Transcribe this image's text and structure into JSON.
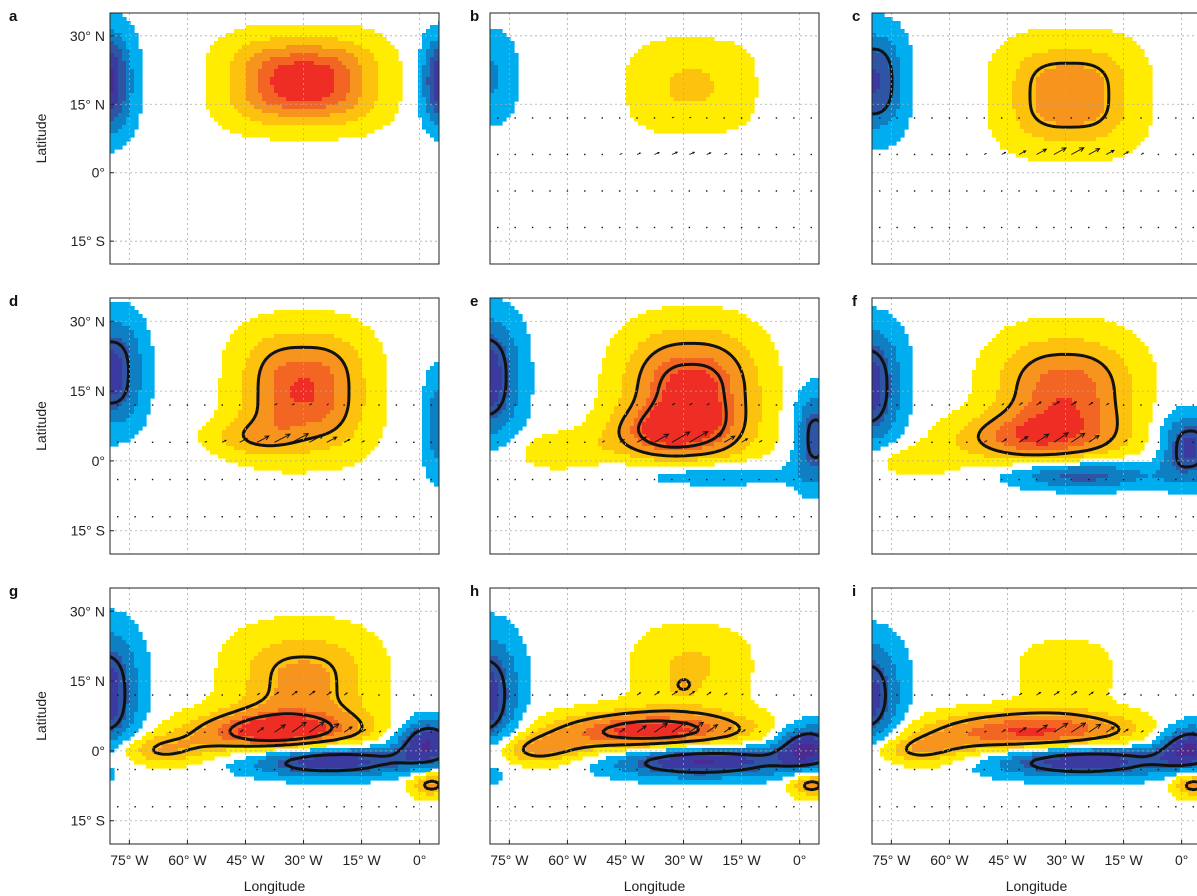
{
  "chart_data": {
    "type": "heatmap",
    "layout": "3x3 grid of map panels (a-i)",
    "panels": [
      "a",
      "b",
      "c",
      "d",
      "e",
      "f",
      "g",
      "h",
      "i"
    ],
    "xlabel": "Longitude",
    "ylabel": "Latitude",
    "x_ticks": [
      {
        "value": -75,
        "label": "75° W"
      },
      {
        "value": -60,
        "label": "60° W"
      },
      {
        "value": -45,
        "label": "45° W"
      },
      {
        "value": -30,
        "label": "30° W"
      },
      {
        "value": -15,
        "label": "15° W"
      },
      {
        "value": 0,
        "label": "0°"
      }
    ],
    "y_ticks": [
      {
        "value": 30,
        "label": "30° N"
      },
      {
        "value": 15,
        "label": "15° N"
      },
      {
        "value": 0,
        "label": "0°"
      },
      {
        "value": -15,
        "label": "15° S"
      }
    ],
    "xlim": [
      -80,
      5
    ],
    "ylim": [
      -20,
      35
    ],
    "grid": "dotted",
    "colors": {
      "positive": [
        "#ffec00",
        "#fcc20e",
        "#f7941d",
        "#f26522",
        "#ee2d24"
      ],
      "negative": [
        "#00aeef",
        "#0d7fc2",
        "#2e54a3",
        "#3a3aa0",
        "#4c2a8f"
      ],
      "contour": "#111111",
      "vector": "#111111"
    },
    "fields": [
      {
        "panel": "a",
        "blobs": [
          {
            "lon": -30,
            "lat": 20,
            "amp": 5.8,
            "rx": 17,
            "ry": 8.5,
            "p": 3
          },
          {
            "lon": -82,
            "lat": 20,
            "amp": -5.5,
            "rx": 7,
            "ry": 10.5,
            "p": 2.5
          },
          {
            "lon": 6,
            "lat": 20,
            "amp": -5,
            "rx": 5,
            "ry": 9,
            "p": 2.5
          }
        ],
        "solid_levels": [],
        "dashed_levels": [],
        "vectors": null
      },
      {
        "panel": "b",
        "blobs": [
          {
            "lon": -28,
            "lat": 19,
            "amp": 1.8,
            "rx": 16,
            "ry": 10,
            "p": 3
          },
          {
            "lon": -80,
            "lat": 21,
            "amp": -1.8,
            "rx": 7,
            "ry": 10,
            "p": 2.5
          }
        ],
        "solid_levels": [],
        "dashed_levels": [],
        "vectors": {
          "rows": [
            12,
            4,
            -4,
            -12
          ],
          "lon_min": -78,
          "lon_max": 3,
          "step": 4.5,
          "center_lon": -32,
          "center_lat": 6,
          "sx": 14,
          "sy": 5,
          "amp_u": 1.6,
          "amp_v": 0.6
        }
      },
      {
        "panel": "c",
        "blobs": [
          {
            "lon": -29,
            "lat": 17,
            "amp": 3.6,
            "rx": 16,
            "ry": 11,
            "p": 3
          },
          {
            "lon": -80,
            "lat": 20,
            "amp": -3.8,
            "rx": 8,
            "ry": 11,
            "p": 2.5
          }
        ],
        "solid_levels": [
          -2.5
        ],
        "dashed_levels": [
          2.4
        ],
        "vectors": {
          "rows": [
            12,
            4,
            -4,
            -12
          ],
          "lon_min": -78,
          "lon_max": 3,
          "step": 4.5,
          "center_lon": -30,
          "center_lat": 5,
          "sx": 15,
          "sy": 4,
          "amp_u": 3.5,
          "amp_v": 1.6
        }
      },
      {
        "panel": "d",
        "blobs": [
          {
            "lon": -30,
            "lat": 15,
            "amp": 4.8,
            "rx": 15,
            "ry": 12,
            "p": 2.8
          },
          {
            "lon": -44,
            "lat": 5,
            "amp": 1.5,
            "rx": 12,
            "ry": 4,
            "p": 2
          },
          {
            "lon": -80,
            "lat": 19,
            "amp": -4.3,
            "rx": 8,
            "ry": 11,
            "p": 2.5
          },
          {
            "lon": 5,
            "lat": 8,
            "amp": -2.5,
            "rx": 4,
            "ry": 11,
            "p": 2.5
          }
        ],
        "solid_levels": [
          -3.0
        ],
        "dashed_levels": [
          2.6
        ],
        "vectors": {
          "rows": [
            12,
            4,
            -4,
            -12
          ],
          "lon_min": -78,
          "lon_max": 3,
          "step": 4.5,
          "center_lon": -34,
          "center_lat": 6,
          "sx": 14,
          "sy": 4,
          "amp_u": 5.5,
          "amp_v": 2.4
        }
      },
      {
        "panel": "e",
        "blobs": [
          {
            "lon": -28,
            "lat": 14,
            "amp": 5.5,
            "rx": 16,
            "ry": 13,
            "p": 2.5
          },
          {
            "lon": -35,
            "lat": 6,
            "amp": 2.5,
            "rx": 15,
            "ry": 5,
            "p": 2
          },
          {
            "lon": -62,
            "lat": 2,
            "amp": 1.5,
            "rx": 12,
            "ry": 4,
            "p": 2
          },
          {
            "lon": -82,
            "lat": 18,
            "amp": -4.8,
            "rx": 9,
            "ry": 12,
            "p": 2.5
          },
          {
            "lon": -25,
            "lat": -3,
            "amp": -2.0,
            "rx": 22,
            "ry": 3,
            "p": 2
          },
          {
            "lon": 4,
            "lat": 5,
            "amp": -3.6,
            "rx": 5,
            "ry": 10,
            "p": 2.5
          }
        ],
        "solid_levels": [
          -3.0
        ],
        "dashed_levels": [
          2.6,
          4.2
        ],
        "vectors": {
          "rows": [
            12,
            4,
            -4,
            -12
          ],
          "lon_min": -78,
          "lon_max": 3,
          "step": 4.5,
          "center_lon": -30,
          "center_lat": 6,
          "sx": 14,
          "sy": 4,
          "amp_u": 6.2,
          "amp_v": 3.0
        }
      },
      {
        "panel": "f",
        "blobs": [
          {
            "lon": -30,
            "lat": 14,
            "amp": 4.5,
            "rx": 17,
            "ry": 12,
            "p": 2.5
          },
          {
            "lon": -40,
            "lat": 5,
            "amp": 3.0,
            "rx": 20,
            "ry": 5,
            "p": 2
          },
          {
            "lon": -70,
            "lat": 0,
            "amp": 1.5,
            "rx": 12,
            "ry": 3.5,
            "p": 2
          },
          {
            "lon": -82,
            "lat": 16,
            "amp": -4.6,
            "rx": 9,
            "ry": 12,
            "p": 2.5
          },
          {
            "lon": -26,
            "lat": -3,
            "amp": -3.6,
            "rx": 19,
            "ry": 3.2,
            "p": 2
          },
          {
            "lon": 2,
            "lat": 3,
            "amp": -4.0,
            "rx": 7,
            "ry": 7,
            "p": 2.5
          }
        ],
        "solid_levels": [
          -3.0
        ],
        "dashed_levels": [
          2.6
        ],
        "vectors": {
          "rows": [
            12,
            4,
            -4,
            -12
          ],
          "lon_min": -78,
          "lon_max": 3,
          "step": 4.5,
          "center_lon": -32,
          "center_lat": 7,
          "sx": 14,
          "sy": 4,
          "amp_u": 6.5,
          "amp_v": 3.6
        }
      },
      {
        "panel": "g",
        "blobs": [
          {
            "lon": -30,
            "lat": 15,
            "amp": 3.0,
            "rx": 18,
            "ry": 11,
            "p": 2.5
          },
          {
            "lon": -37,
            "lat": 4,
            "amp": 5.0,
            "rx": 22,
            "ry": 4.5,
            "p": 2
          },
          {
            "lon": -68,
            "lat": 0,
            "amp": 2.5,
            "rx": 14,
            "ry": 3.5,
            "p": 2
          },
          {
            "lon": -82,
            "lat": 12,
            "amp": -4.6,
            "rx": 9,
            "ry": 13,
            "p": 2.5
          },
          {
            "lon": -24,
            "lat": -2,
            "amp": -5.0,
            "rx": 22,
            "ry": 3.5,
            "p": 2
          },
          {
            "lon": 2,
            "lat": 2,
            "amp": -4.5,
            "rx": 8,
            "ry": 5,
            "p": 2
          },
          {
            "lon": 3,
            "lat": -7,
            "amp": 3.0,
            "rx": 6,
            "ry": 3,
            "p": 2
          }
        ],
        "solid_levels": [
          -3.0
        ],
        "dashed_levels": [
          2.4,
          4.2
        ],
        "vectors": {
          "rows": [
            12,
            4,
            -4,
            -12
          ],
          "lon_min": -78,
          "lon_max": 3,
          "step": 4.5,
          "center_lon": -30,
          "center_lat": 7,
          "sx": 13,
          "sy": 4,
          "amp_u": 6.8,
          "amp_v": 4.0
        }
      },
      {
        "panel": "h",
        "blobs": [
          {
            "lon": -28,
            "lat": 18,
            "amp": 1.8,
            "rx": 15,
            "ry": 9,
            "p": 2.5
          },
          {
            "lon": -30,
            "lat": 14,
            "amp": 1.2,
            "rx": 3,
            "ry": 2,
            "p": 2
          },
          {
            "lon": -38,
            "lat": 4,
            "amp": 5.3,
            "rx": 26,
            "ry": 4.5,
            "p": 2
          },
          {
            "lon": -70,
            "lat": 0,
            "amp": 2.8,
            "rx": 15,
            "ry": 3.5,
            "p": 2
          },
          {
            "lon": -82,
            "lat": 11,
            "amp": -4.6,
            "rx": 9,
            "ry": 13,
            "p": 2.5
          },
          {
            "lon": -26,
            "lat": -2,
            "amp": -5.3,
            "rx": 24,
            "ry": 3.6,
            "p": 2
          },
          {
            "lon": 2,
            "lat": 1,
            "amp": -4.5,
            "rx": 8,
            "ry": 5,
            "p": 2
          },
          {
            "lon": 3,
            "lat": -7,
            "amp": 3.2,
            "rx": 6,
            "ry": 3,
            "p": 2
          }
        ],
        "solid_levels": [
          -3.0
        ],
        "dashed_levels": [
          2.4,
          4.2
        ],
        "vectors": {
          "rows": [
            12,
            4,
            -4,
            -12
          ],
          "lon_min": -78,
          "lon_max": 3,
          "step": 4.5,
          "center_lon": -32,
          "center_lat": 7,
          "sx": 14,
          "sy": 4,
          "amp_u": 6.8,
          "amp_v": 4.0
        }
      },
      {
        "panel": "i",
        "blobs": [
          {
            "lon": -30,
            "lat": 17,
            "amp": 1.6,
            "rx": 12,
            "ry": 7,
            "p": 2.5
          },
          {
            "lon": -38,
            "lat": 4,
            "amp": 5.0,
            "rx": 27,
            "ry": 4.5,
            "p": 2
          },
          {
            "lon": -70,
            "lat": 0,
            "amp": 2.6,
            "rx": 15,
            "ry": 3.5,
            "p": 2
          },
          {
            "lon": -82,
            "lat": 11,
            "amp": -4.4,
            "rx": 9,
            "ry": 12,
            "p": 2.5
          },
          {
            "lon": -26,
            "lat": -2,
            "amp": -5.0,
            "rx": 24,
            "ry": 3.6,
            "p": 2
          },
          {
            "lon": 2,
            "lat": 1,
            "amp": -4.5,
            "rx": 8,
            "ry": 5,
            "p": 2
          },
          {
            "lon": 3,
            "lat": -7,
            "amp": 3.2,
            "rx": 6,
            "ry": 3,
            "p": 2
          }
        ],
        "solid_levels": [
          -3.0
        ],
        "dashed_levels": [
          2.4
        ],
        "vectors": {
          "rows": [
            12,
            4,
            -4,
            -12
          ],
          "lon_min": -78,
          "lon_max": 3,
          "step": 4.5,
          "center_lon": -30,
          "center_lat": 7,
          "sx": 14,
          "sy": 4,
          "amp_u": 6.5,
          "amp_v": 3.6
        }
      }
    ]
  }
}
